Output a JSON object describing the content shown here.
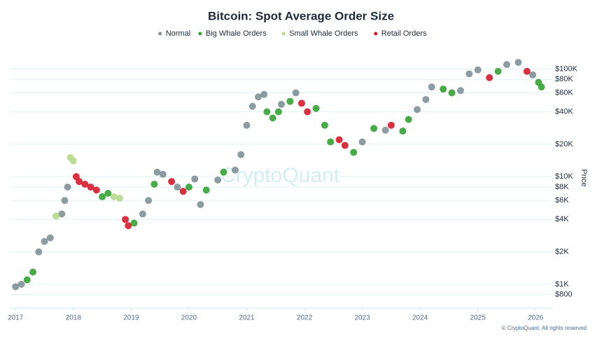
{
  "chart_data": {
    "type": "scatter",
    "title": "Bitcoin: Spot Average Order Size",
    "y_label": "Price",
    "watermark": "CryptoQuant",
    "footer": "© CryptoQuant. All rights reserved",
    "log_y": true,
    "grid": true,
    "xlim": [
      2016.9,
      2026.3
    ],
    "xticks": [
      2017,
      2018,
      2019,
      2020,
      2021,
      2022,
      2023,
      2024,
      2025,
      2026
    ],
    "ylim": [
      600,
      165000
    ],
    "yticks": [
      {
        "value": 800,
        "label": "$800"
      },
      {
        "value": 1000,
        "label": "$1K"
      },
      {
        "value": 2000,
        "label": "$2K"
      },
      {
        "value": 4000,
        "label": "$4K"
      },
      {
        "value": 6000,
        "label": "$6K"
      },
      {
        "value": 8000,
        "label": "$8K"
      },
      {
        "value": 10000,
        "label": "$10K"
      },
      {
        "value": 20000,
        "label": "$20K"
      },
      {
        "value": 40000,
        "label": "$40K"
      },
      {
        "value": 60000,
        "label": "$60K"
      },
      {
        "value": 80000,
        "label": "$80K"
      },
      {
        "value": 100000,
        "label": "$100K"
      }
    ],
    "series": [
      {
        "name": "Normal",
        "color": "#7f9197",
        "x": [
          2017.0,
          2017.1,
          2017.4,
          2017.5,
          2017.6,
          2017.8,
          2017.85,
          2017.9,
          2019.2,
          2019.3,
          2019.45,
          2019.55,
          2019.8,
          2020.1,
          2020.2,
          2020.5,
          2020.8,
          2020.9,
          2021.0,
          2021.1,
          2021.2,
          2021.3,
          2021.6,
          2021.85,
          2023.0,
          2023.4,
          2023.95,
          2024.1,
          2024.2,
          2024.7,
          2024.85,
          2025.0,
          2025.5,
          2025.7,
          2025.95
        ],
        "values": [
          950,
          1000,
          2000,
          2500,
          2700,
          4500,
          6000,
          8000,
          4500,
          6000,
          11000,
          10500,
          8000,
          9500,
          5500,
          9300,
          11500,
          16000,
          30000,
          45000,
          55000,
          58000,
          47000,
          60000,
          21000,
          27000,
          42000,
          52000,
          68000,
          63000,
          90000,
          98000,
          110000,
          115000,
          88000
        ]
      },
      {
        "name": "Big Whale Orders",
        "color": "#33a333",
        "x": [
          2017.2,
          2017.3,
          2018.5,
          2018.6,
          2019.05,
          2019.4,
          2020.0,
          2020.3,
          2020.6,
          2021.35,
          2021.45,
          2021.55,
          2021.75,
          2022.2,
          2022.35,
          2022.45,
          2022.85,
          2023.2,
          2023.7,
          2023.8,
          2024.4,
          2024.55,
          2025.35,
          2026.05,
          2026.1
        ],
        "values": [
          1100,
          1300,
          6500,
          7000,
          3700,
          8500,
          8000,
          7500,
          11000,
          40000,
          35000,
          40000,
          50000,
          43000,
          30000,
          21000,
          16800,
          28000,
          26500,
          34000,
          65000,
          60000,
          95000,
          75000,
          68000
        ]
      },
      {
        "name": "Small Whale Orders",
        "color": "#b6d98c",
        "x": [
          2017.7,
          2017.95,
          2018.0,
          2018.7,
          2018.8
        ],
        "values": [
          4300,
          15000,
          14000,
          6500,
          6300
        ]
      },
      {
        "name": "Retail Orders",
        "color": "#d61a2b",
        "x": [
          2018.05,
          2018.1,
          2018.2,
          2018.3,
          2018.4,
          2018.9,
          2018.95,
          2019.7,
          2019.9,
          2021.95,
          2022.05,
          2022.6,
          2022.7,
          2023.5,
          2025.2,
          2025.85
        ],
        "values": [
          10000,
          9000,
          8500,
          8000,
          7500,
          4000,
          3500,
          9000,
          7300,
          48000,
          40000,
          22000,
          19500,
          30000,
          83000,
          95000
        ]
      }
    ]
  }
}
